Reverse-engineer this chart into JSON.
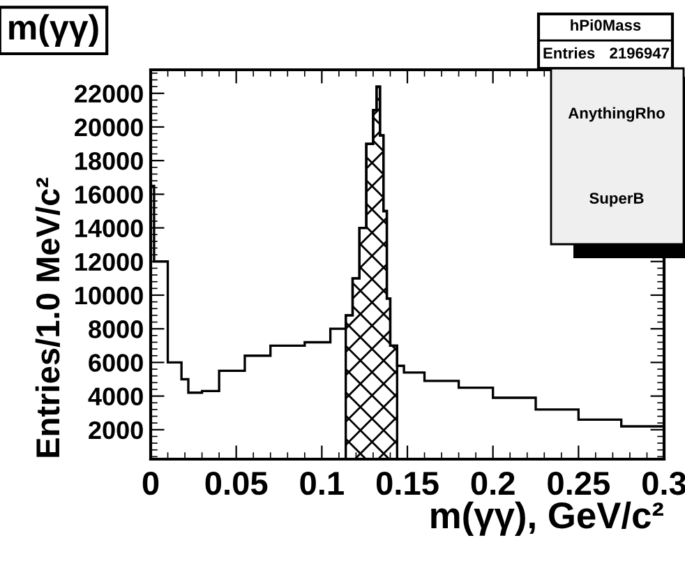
{
  "chart_data": {
    "type": "histogram",
    "title": "m(γγ)",
    "xlabel": "m(γγ), GeV/c²",
    "ylabel": "Entries/1.0 MeV/c²",
    "bins": [
      0,
      0.002,
      0.01,
      0.018,
      0.022,
      0.03,
      0.04,
      0.055,
      0.07,
      0.09,
      0.105,
      0.114,
      0.118,
      0.122,
      0.126,
      0.13,
      0.132,
      0.134,
      0.136,
      0.138,
      0.14,
      0.144,
      0.148,
      0.16,
      0.18,
      0.2,
      0.225,
      0.25,
      0.275,
      0.3
    ],
    "series": [
      {
        "color": "#000000",
        "values": [
          16500,
          12000,
          6000,
          5000,
          4200,
          4300,
          5500,
          6400,
          7000,
          7200,
          8000,
          8800,
          11000,
          14000,
          19000,
          21000,
          22400,
          19500,
          15000,
          9800,
          7000,
          5800,
          5400,
          4900,
          4500,
          3900,
          3200,
          2600,
          2200
        ]
      },
      {
        "color": "#000000",
        "bins": [
          0.114,
          0.118,
          0.122,
          0.126,
          0.13,
          0.132,
          0.134,
          0.136,
          0.138,
          0.14,
          0.144
        ],
        "values": [
          8800,
          11000,
          14000,
          19000,
          21000,
          22400,
          19500,
          15000,
          9800,
          7000
        ]
      }
    ],
    "xlim": [
      0,
      0.3
    ],
    "xticks": [
      0,
      0.05,
      0.1,
      0.15,
      0.2,
      0.25,
      0.3
    ],
    "ylim": [
      250,
      23400
    ],
    "yticks": [
      2000,
      4000,
      6000,
      8000,
      10000,
      12000,
      14000,
      16000,
      18000,
      20000,
      22000
    ],
    "grid": false,
    "legend": false,
    "annotations": [
      "hPi0Mass",
      "Entries",
      "2196947",
      "AnythingRho",
      "SuperB"
    ]
  }
}
